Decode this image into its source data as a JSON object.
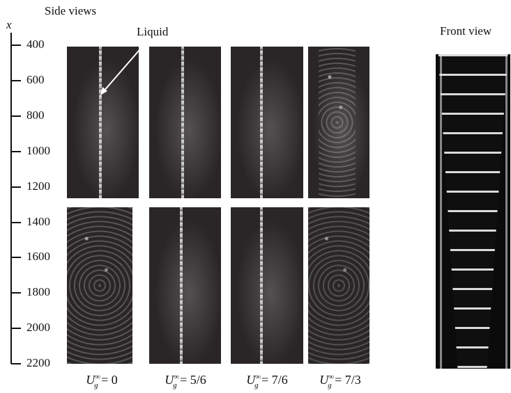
{
  "titles": {
    "side_views": "Side views",
    "front_view": "Front view",
    "axis_symbol": "x"
  },
  "annotation": {
    "text": "Liquid"
  },
  "axis": {
    "ticks": [
      "400",
      "600",
      "800",
      "1000",
      "1200",
      "1400",
      "1600",
      "1800",
      "2000",
      "2200"
    ]
  },
  "captions": [
    {
      "symbol": "U",
      "sub": "g",
      "sup": "∞",
      "value": "= 0"
    },
    {
      "symbol": "U",
      "sub": "g",
      "sup": "∞",
      "value": "= 5/6"
    },
    {
      "symbol": "U",
      "sub": "g",
      "sup": "∞",
      "value": "= 7/6"
    },
    {
      "symbol": "U",
      "sub": "g",
      "sup": "∞",
      "value": "= 7/3"
    }
  ],
  "photos": {
    "top_row": [
      "liquid-jet-photo",
      "liquid-jet-photo",
      "liquid-jet-photo",
      "spray-photo"
    ],
    "bottom_row": [
      "spray-photo",
      "liquid-jet-photo",
      "liquid-jet-photo",
      "spray-photo"
    ],
    "front": "liquid-sheet-photo"
  },
  "colors": {
    "photo_background": "#2a2628",
    "front_background": "#0c0b0c",
    "text": "#111111"
  }
}
